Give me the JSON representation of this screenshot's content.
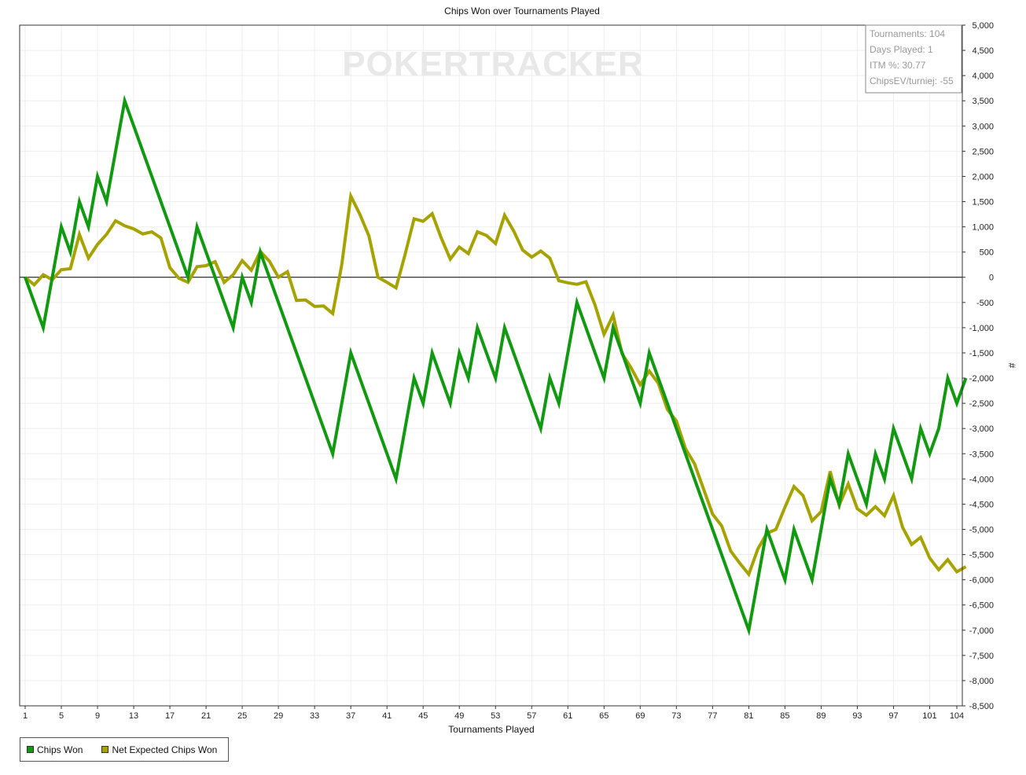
{
  "chart_data": {
    "type": "line",
    "title": "Chips Won over Tournaments Played",
    "xlabel": "Tournaments Played",
    "ylabel": "#",
    "xlim": [
      1,
      104
    ],
    "ylim": [
      -8500,
      5000
    ],
    "y_tick_step": 500,
    "x_ticks": [
      1,
      5,
      9,
      13,
      17,
      21,
      25,
      29,
      33,
      37,
      41,
      45,
      49,
      53,
      57,
      61,
      65,
      69,
      73,
      77,
      81,
      85,
      89,
      93,
      97,
      101,
      104
    ],
    "grid": true,
    "legend_position": "bottom-left",
    "watermark": "POKERTRACKER",
    "stats": [
      "Tournaments: 104",
      "Days Played: 1",
      "ITM %: 30.77",
      "ChipsEV/turniej: -55"
    ],
    "series": [
      {
        "name": "Chips Won",
        "color": "#119911",
        "points": [
          [
            1,
            0
          ],
          [
            3,
            -1000
          ],
          [
            5,
            1000
          ],
          [
            6,
            500
          ],
          [
            7,
            1500
          ],
          [
            8,
            1000
          ],
          [
            9,
            2000
          ],
          [
            10,
            1500
          ],
          [
            12,
            3500
          ],
          [
            19,
            0
          ],
          [
            20,
            1000
          ],
          [
            24,
            -1000
          ],
          [
            25,
            0
          ],
          [
            26,
            -500
          ],
          [
            27,
            500
          ],
          [
            35,
            -3500
          ],
          [
            37,
            -1500
          ],
          [
            42,
            -4000
          ],
          [
            44,
            -2000
          ],
          [
            45,
            -2500
          ],
          [
            46,
            -1500
          ],
          [
            48,
            -2500
          ],
          [
            49,
            -1500
          ],
          [
            50,
            -2000
          ],
          [
            51,
            -1000
          ],
          [
            53,
            -2000
          ],
          [
            54,
            -1000
          ],
          [
            58,
            -3000
          ],
          [
            59,
            -2000
          ],
          [
            60,
            -2500
          ],
          [
            62,
            -500
          ],
          [
            65,
            -2000
          ],
          [
            66,
            -1000
          ],
          [
            69,
            -2500
          ],
          [
            70,
            -1500
          ],
          [
            81,
            -7000
          ],
          [
            83,
            -5000
          ],
          [
            85,
            -6000
          ],
          [
            86,
            -5000
          ],
          [
            88,
            -6000
          ],
          [
            90,
            -4000
          ],
          [
            91,
            -4500
          ],
          [
            92,
            -3500
          ],
          [
            94,
            -4500
          ],
          [
            95,
            -3500
          ],
          [
            96,
            -4000
          ],
          [
            97,
            -3000
          ],
          [
            99,
            -4000
          ],
          [
            100,
            -3000
          ],
          [
            101,
            -3500
          ],
          [
            102,
            -3000
          ],
          [
            103,
            -2000
          ],
          [
            104,
            -2500
          ],
          [
            105,
            -2000
          ]
        ]
      },
      {
        "name": "Net Expected Chips Won",
        "color": "#a6a300",
        "points": [
          [
            1,
            0
          ],
          [
            2,
            -150
          ],
          [
            3,
            50
          ],
          [
            4,
            -50
          ],
          [
            5,
            150
          ],
          [
            6,
            170
          ],
          [
            7,
            850
          ],
          [
            8,
            380
          ],
          [
            9,
            650
          ],
          [
            10,
            850
          ],
          [
            11,
            1120
          ],
          [
            12,
            1020
          ],
          [
            13,
            960
          ],
          [
            14,
            860
          ],
          [
            15,
            900
          ],
          [
            16,
            780
          ],
          [
            17,
            190
          ],
          [
            18,
            -20
          ],
          [
            19,
            -100
          ],
          [
            20,
            210
          ],
          [
            21,
            230
          ],
          [
            22,
            310
          ],
          [
            23,
            -100
          ],
          [
            24,
            50
          ],
          [
            25,
            330
          ],
          [
            26,
            140
          ],
          [
            27,
            510
          ],
          [
            28,
            320
          ],
          [
            29,
            0
          ],
          [
            30,
            110
          ],
          [
            31,
            -460
          ],
          [
            32,
            -450
          ],
          [
            33,
            -580
          ],
          [
            34,
            -570
          ],
          [
            35,
            -720
          ],
          [
            36,
            250
          ],
          [
            37,
            1610
          ],
          [
            38,
            1250
          ],
          [
            39,
            820
          ],
          [
            40,
            0
          ],
          [
            41,
            -100
          ],
          [
            42,
            -210
          ],
          [
            43,
            450
          ],
          [
            44,
            1160
          ],
          [
            45,
            1110
          ],
          [
            46,
            1260
          ],
          [
            47,
            780
          ],
          [
            48,
            360
          ],
          [
            49,
            600
          ],
          [
            50,
            470
          ],
          [
            51,
            900
          ],
          [
            52,
            830
          ],
          [
            53,
            670
          ],
          [
            54,
            1230
          ],
          [
            55,
            920
          ],
          [
            56,
            540
          ],
          [
            57,
            400
          ],
          [
            58,
            520
          ],
          [
            59,
            380
          ],
          [
            60,
            -70
          ],
          [
            61,
            -110
          ],
          [
            62,
            -140
          ],
          [
            63,
            -90
          ],
          [
            64,
            -550
          ],
          [
            65,
            -1130
          ],
          [
            66,
            -750
          ],
          [
            67,
            -1520
          ],
          [
            68,
            -1800
          ],
          [
            69,
            -2130
          ],
          [
            70,
            -1860
          ],
          [
            71,
            -2100
          ],
          [
            72,
            -2620
          ],
          [
            73,
            -2850
          ],
          [
            74,
            -3400
          ],
          [
            75,
            -3700
          ],
          [
            76,
            -4200
          ],
          [
            77,
            -4700
          ],
          [
            78,
            -4930
          ],
          [
            79,
            -5430
          ],
          [
            80,
            -5670
          ],
          [
            81,
            -5890
          ],
          [
            82,
            -5390
          ],
          [
            83,
            -5080
          ],
          [
            84,
            -5000
          ],
          [
            85,
            -4560
          ],
          [
            86,
            -4150
          ],
          [
            87,
            -4330
          ],
          [
            88,
            -4830
          ],
          [
            89,
            -4650
          ],
          [
            90,
            -3850
          ],
          [
            91,
            -4520
          ],
          [
            92,
            -4100
          ],
          [
            93,
            -4590
          ],
          [
            94,
            -4720
          ],
          [
            95,
            -4550
          ],
          [
            96,
            -4730
          ],
          [
            97,
            -4330
          ],
          [
            98,
            -4960
          ],
          [
            99,
            -5300
          ],
          [
            100,
            -5160
          ],
          [
            101,
            -5570
          ],
          [
            102,
            -5800
          ],
          [
            103,
            -5600
          ],
          [
            104,
            -5840
          ],
          [
            105,
            -5740
          ]
        ]
      }
    ]
  }
}
